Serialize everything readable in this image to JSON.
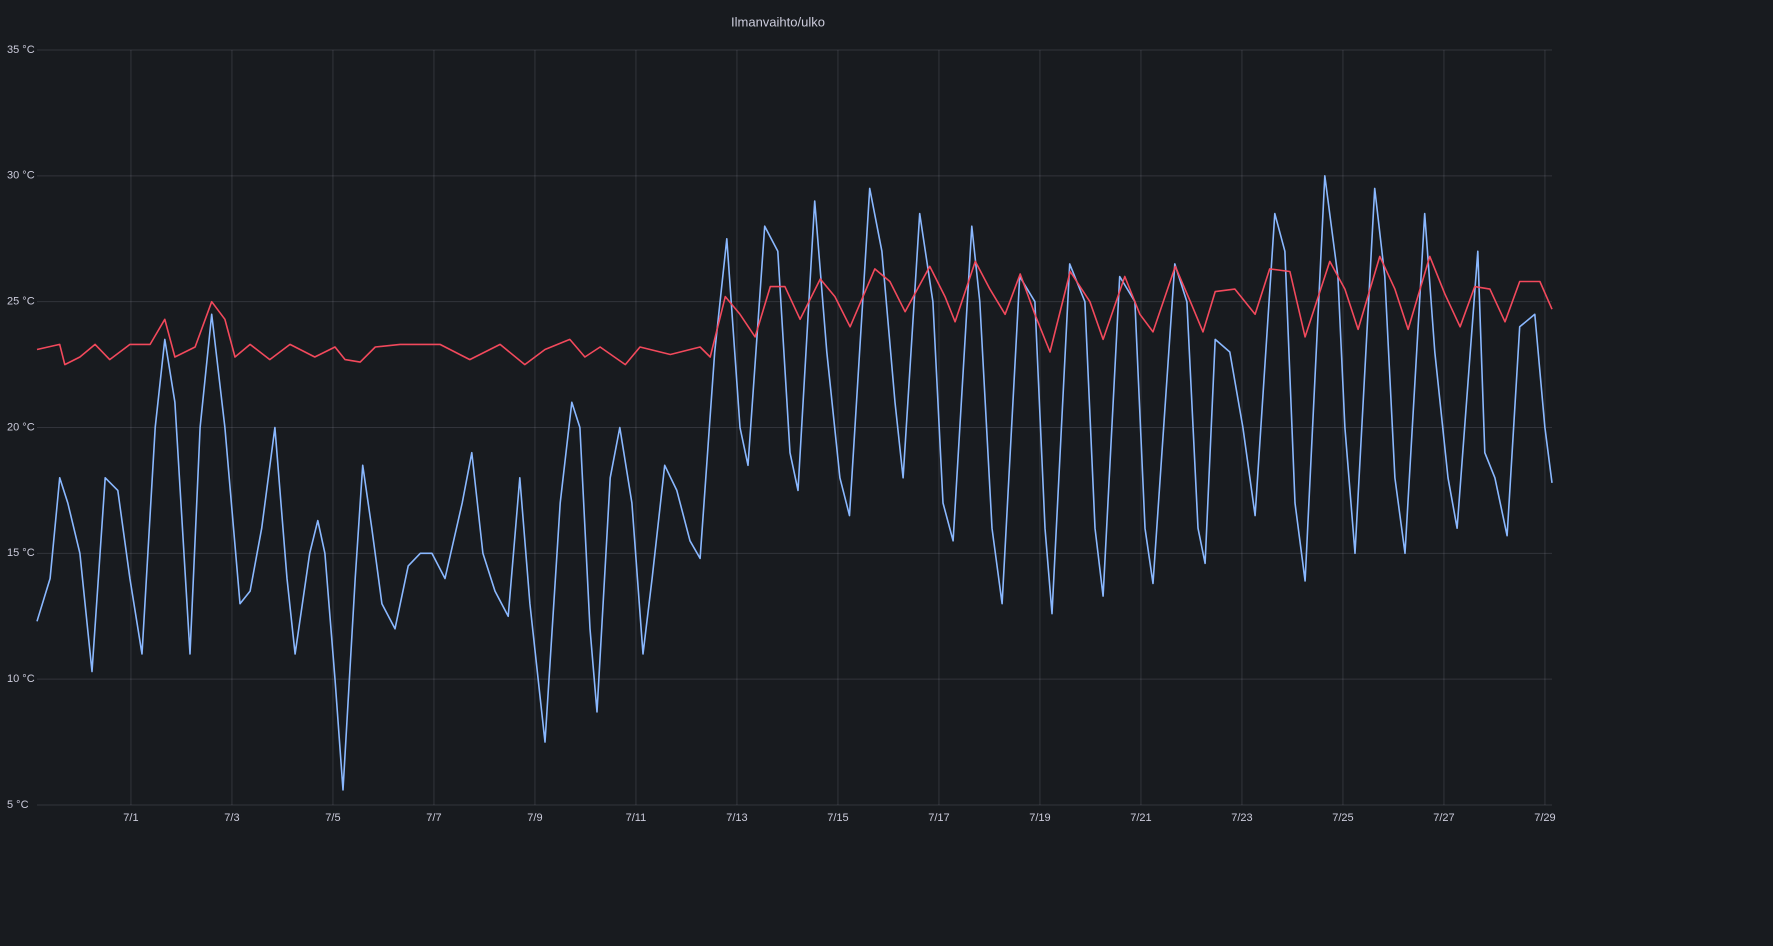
{
  "chart_data": {
    "type": "line",
    "title": "Ilmanvaihto/ulko",
    "xlim": [
      -0.86,
      29.14
    ],
    "xticks": [
      {
        "value": 1,
        "label": "7/1"
      },
      {
        "value": 3,
        "label": "7/3"
      },
      {
        "value": 5,
        "label": "7/5"
      },
      {
        "value": 7,
        "label": "7/7"
      },
      {
        "value": 9,
        "label": "7/9"
      },
      {
        "value": 11,
        "label": "7/11"
      },
      {
        "value": 13,
        "label": "7/13"
      },
      {
        "value": 15,
        "label": "7/15"
      },
      {
        "value": 17,
        "label": "7/17"
      },
      {
        "value": 19,
        "label": "7/19"
      },
      {
        "value": 21,
        "label": "7/21"
      },
      {
        "value": 23,
        "label": "7/23"
      },
      {
        "value": 25,
        "label": "7/25"
      },
      {
        "value": 27,
        "label": "7/27"
      },
      {
        "value": 29,
        "label": "7/29"
      }
    ],
    "ylim": [
      5,
      35
    ],
    "yticks": [
      {
        "value": 5,
        "label": "5 °C"
      },
      {
        "value": 10,
        "label": "10 °C"
      },
      {
        "value": 15,
        "label": "15 °C"
      },
      {
        "value": 20,
        "label": "20 °C"
      },
      {
        "value": 25,
        "label": "25 °C"
      },
      {
        "value": 30,
        "label": "30 °C"
      },
      {
        "value": 35,
        "label": "35 °C"
      }
    ],
    "grid": true,
    "series": [
      {
        "color": "#8ab8ff",
        "x": [
          -0.86,
          -0.6,
          -0.41,
          -0.25,
          -0.01,
          0.23,
          0.49,
          0.74,
          0.98,
          1.22,
          1.48,
          1.67,
          1.87,
          2.17,
          2.37,
          2.6,
          2.86,
          3.16,
          3.36,
          3.59,
          3.85,
          4.09,
          4.25,
          4.54,
          4.7,
          4.84,
          5.04,
          5.2,
          5.44,
          5.59,
          5.77,
          5.97,
          6.23,
          6.49,
          6.73,
          6.96,
          7.22,
          7.56,
          7.75,
          7.97,
          8.21,
          8.47,
          8.7,
          8.9,
          9.2,
          9.5,
          9.73,
          9.89,
          10.09,
          10.23,
          10.49,
          10.68,
          10.92,
          11.14,
          11.32,
          11.57,
          11.81,
          12.07,
          12.27,
          12.56,
          12.8,
          13.06,
          13.22,
          13.55,
          13.81,
          14.05,
          14.21,
          14.54,
          14.78,
          15.04,
          15.23,
          15.63,
          15.87,
          16.13,
          16.29,
          16.62,
          16.88,
          17.08,
          17.28,
          17.65,
          17.81,
          18.05,
          18.25,
          18.6,
          18.9,
          19.1,
          19.24,
          19.59,
          19.89,
          20.09,
          20.25,
          20.58,
          20.88,
          21.08,
          21.24,
          21.67,
          21.91,
          22.13,
          22.27,
          22.47,
          22.76,
          23.02,
          23.26,
          23.65,
          23.85,
          24.05,
          24.25,
          24.64,
          24.9,
          25.04,
          25.24,
          25.63,
          25.83,
          26.03,
          26.23,
          26.62,
          26.82,
          27.08,
          27.26,
          27.67,
          27.81,
          28.01,
          28.25,
          28.5,
          28.8,
          29.0,
          29.14
        ],
        "values": [
          12.3,
          14,
          18,
          17,
          15,
          10.3,
          18,
          17.5,
          14,
          11,
          20,
          23.5,
          21,
          11,
          20,
          24.5,
          20,
          13,
          13.5,
          16,
          20,
          14,
          11,
          15,
          16.3,
          15,
          10,
          5.6,
          14,
          18.5,
          16,
          13,
          12,
          14.5,
          15,
          15,
          14,
          17,
          19,
          15,
          13.5,
          12.5,
          18,
          13,
          7.5,
          17,
          21,
          20,
          12,
          8.7,
          18,
          20,
          17,
          11,
          14,
          18.5,
          17.5,
          15.5,
          14.8,
          23,
          27.5,
          20,
          18.5,
          28,
          27,
          19,
          17.5,
          29,
          23,
          18,
          16.5,
          29.5,
          27,
          21,
          18,
          28.5,
          25,
          17,
          15.5,
          28,
          25,
          16,
          13,
          26,
          25,
          16,
          12.6,
          26.5,
          25,
          16,
          13.3,
          26,
          25,
          16,
          13.8,
          26.5,
          25,
          16,
          14.6,
          23.5,
          23,
          20,
          16.5,
          28.5,
          27,
          17,
          13.9,
          30,
          26,
          20,
          15,
          29.5,
          26,
          18,
          15,
          28.5,
          23,
          18,
          16,
          27,
          19,
          18,
          15.7,
          24,
          24.5,
          20,
          17.8
        ]
      },
      {
        "color": "#f2495c",
        "x": [
          -0.86,
          -0.41,
          -0.31,
          -0.01,
          0.29,
          0.58,
          0.98,
          1.38,
          1.67,
          1.87,
          2.27,
          2.6,
          2.86,
          3.06,
          3.36,
          3.75,
          4.15,
          4.64,
          5.04,
          5.24,
          5.54,
          5.84,
          6.33,
          7.12,
          7.71,
          8.31,
          8.8,
          9.2,
          9.69,
          9.99,
          10.29,
          10.79,
          11.08,
          11.68,
          12.27,
          12.47,
          12.77,
          13.06,
          13.36,
          13.66,
          13.95,
          14.25,
          14.65,
          14.94,
          15.24,
          15.73,
          16.03,
          16.33,
          16.82,
          17.12,
          17.32,
          17.72,
          18.01,
          18.31,
          18.61,
          18.9,
          19.2,
          19.6,
          19.99,
          20.25,
          20.68,
          20.98,
          21.24,
          21.68,
          21.98,
          22.23,
          22.47,
          22.86,
          23.26,
          23.55,
          23.95,
          24.25,
          24.74,
          25.04,
          25.3,
          25.73,
          26.03,
          26.29,
          26.72,
          27.02,
          27.32,
          27.61,
          27.91,
          28.21,
          28.5,
          28.9,
          29.14
        ],
        "values": [
          23.1,
          23.3,
          22.5,
          22.8,
          23.3,
          22.7,
          23.3,
          23.3,
          24.3,
          22.8,
          23.2,
          25,
          24.3,
          22.8,
          23.3,
          22.7,
          23.3,
          22.8,
          23.2,
          22.7,
          22.6,
          23.2,
          23.3,
          23.3,
          22.7,
          23.3,
          22.5,
          23.1,
          23.5,
          22.8,
          23.2,
          22.5,
          23.2,
          22.9,
          23.2,
          22.8,
          25.2,
          24.5,
          23.6,
          25.6,
          25.6,
          24.3,
          25.9,
          25.2,
          24,
          26.3,
          25.8,
          24.6,
          26.4,
          25.2,
          24.2,
          26.6,
          25.5,
          24.5,
          26.1,
          24.5,
          23,
          26.2,
          25,
          23.5,
          26,
          24.5,
          23.8,
          26.4,
          25,
          23.8,
          25.4,
          25.5,
          24.5,
          26.3,
          26.2,
          23.6,
          26.6,
          25.5,
          23.9,
          26.8,
          25.5,
          23.9,
          26.8,
          25.3,
          24,
          25.6,
          25.5,
          24.2,
          25.8,
          25.8,
          24.7
        ]
      }
    ]
  }
}
